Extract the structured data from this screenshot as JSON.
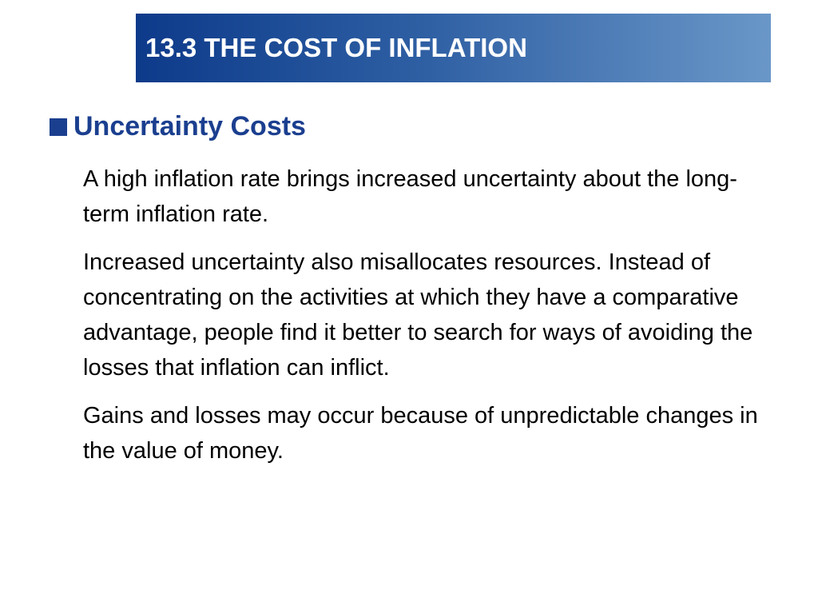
{
  "slide": {
    "title": "13.3 THE COST OF INFLATION",
    "heading": "Uncertainty Costs",
    "paragraphs": [
      "A high inflation rate brings increased uncertainty about the long-term inflation rate.",
      "Increased uncertainty also misallocates resources. Instead of concentrating on the activities at which they have a comparative advantage, people find it better to search for ways of avoiding the losses that inflation can inflict.",
      "Gains and losses may occur because of unpredictable changes in the value of money."
    ]
  },
  "colors": {
    "title_bar_start": "#0d3a8a",
    "title_bar_end": "#6a97c8",
    "heading": "#1b3f8f",
    "body_text": "#000000"
  },
  "icons": {
    "heading_bullet": "square-bullet-icon"
  }
}
